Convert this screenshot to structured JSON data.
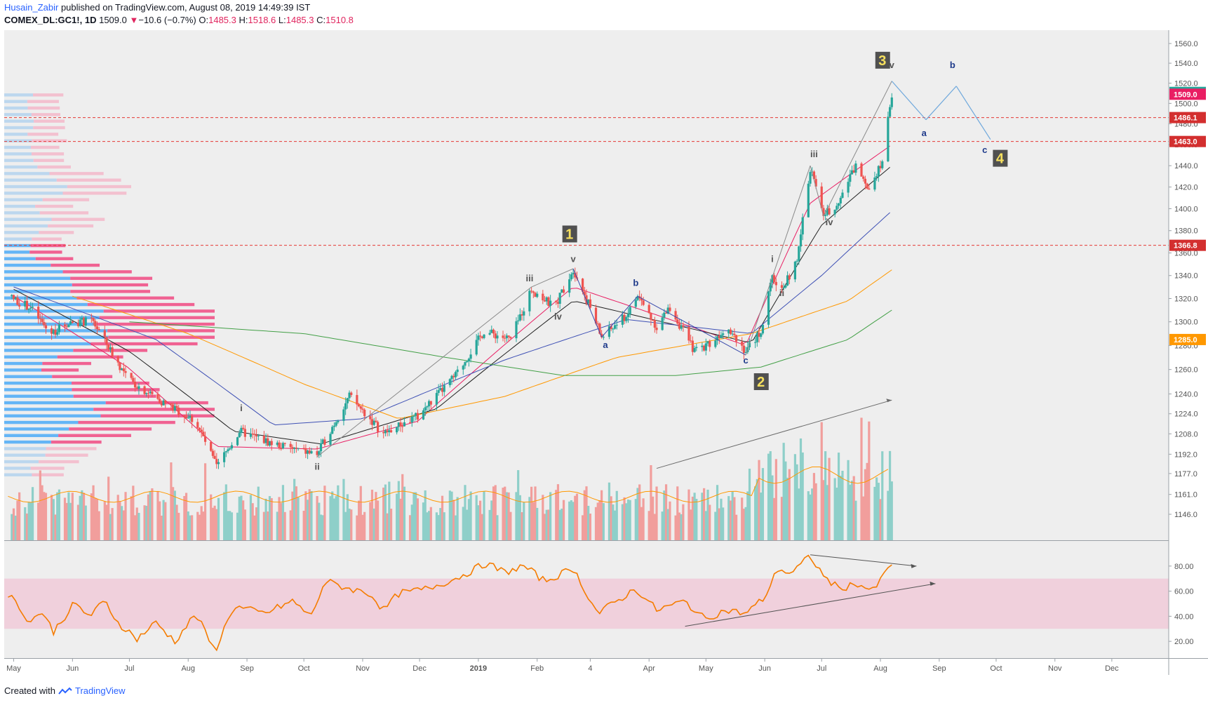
{
  "header": {
    "author": "Husain_Zabir",
    "published": "published on TradingView.com, August 08, 2019 14:49:39 IST",
    "symbol": "COMEX_DL:GC1!, 1D",
    "last": "1509.0",
    "arrow": "▼",
    "change": "−10.6 (−0.7%)",
    "o_label": "O:",
    "o_value": "1485.3",
    "h_label": "H:",
    "h_value": "1518.6",
    "l_label": "L:",
    "l_value": "1485.3",
    "c_label": "C:",
    "c_value": "1510.8"
  },
  "footer": {
    "created_with": "Created with",
    "brand": "TradingView"
  },
  "colors": {
    "up": "#26a69a",
    "down": "#ef5350",
    "background": "#eeeeee",
    "ema_red": "#e91e63",
    "ema_black": "#212121",
    "ema_blue": "#3f51b5",
    "ema_orange": "#ff9800",
    "ema_green": "#43a047",
    "rsi": "#f57c00",
    "rsi_band": "#f0d0dc",
    "wave_label": "#f6e05e",
    "wave_box": "#505050",
    "abc": "#1e3a8a",
    "projection": "#6fa8dc"
  },
  "chart_data": [
    {
      "type": "candlestick",
      "y_axis": {
        "ticks": [
          1146.0,
          1161.0,
          1177.0,
          1192.0,
          1208.0,
          1224.0,
          1240.0,
          1260.0,
          1280.0,
          1300.0,
          1320.0,
          1340.0,
          1360.0,
          1380.0,
          1400.0,
          1420.0,
          1440.0,
          1460.0,
          1480.0,
          1500.0,
          1520.0,
          1540.0,
          1560.0
        ],
        "scale": "log"
      },
      "x_axis": {
        "ticks": [
          "May",
          "Jun",
          "Jul",
          "Aug",
          "Sep",
          "Oct",
          "Nov",
          "Dec",
          "2019",
          "Feb",
          "4",
          "Apr",
          "May",
          "Jun",
          "Jul",
          "Aug",
          "Sep",
          "Oct",
          "Nov",
          "Dec"
        ]
      },
      "price_labels": [
        {
          "value": "1510.8",
          "color": "#26a69a"
        },
        {
          "value": "1509.0",
          "color": "#e91e63"
        },
        {
          "value": "1486.1",
          "color": "#d32f2f"
        },
        {
          "value": "1463.0",
          "color": "#d32f2f"
        },
        {
          "value": "1366.8",
          "color": "#d32f2f"
        },
        {
          "value": "1285.0",
          "color": "#ff9800"
        }
      ],
      "horizontal_levels": [
        1486.1,
        1463.0,
        1366.8
      ],
      "price_path": [
        [
          "2018-04-28",
          1322
        ],
        [
          "2018-05-10",
          1312
        ],
        [
          "2018-05-20",
          1290
        ],
        [
          "2018-05-31",
          1300
        ],
        [
          "2018-06-12",
          1300
        ],
        [
          "2018-06-30",
          1252
        ],
        [
          "2018-07-20",
          1232
        ],
        [
          "2018-08-05",
          1218
        ],
        [
          "2018-08-16",
          1182
        ],
        [
          "2018-08-28",
          1210
        ],
        [
          "2018-09-15",
          1200
        ],
        [
          "2018-09-28",
          1195
        ],
        [
          "2018-10-08",
          1192
        ],
        [
          "2018-10-25",
          1238
        ],
        [
          "2018-11-12",
          1208
        ],
        [
          "2018-11-30",
          1222
        ],
        [
          "2018-12-20",
          1255
        ],
        [
          "2019-01-04",
          1292
        ],
        [
          "2019-01-18",
          1285
        ],
        [
          "2019-01-29",
          1328
        ],
        [
          "2019-02-10",
          1312
        ],
        [
          "2019-02-20",
          1346
        ],
        [
          "2019-03-01",
          1312
        ],
        [
          "2019-03-07",
          1287
        ],
        [
          "2019-03-20",
          1305
        ],
        [
          "2019-03-26",
          1322
        ],
        [
          "2019-04-05",
          1296
        ],
        [
          "2019-04-12",
          1312
        ],
        [
          "2019-04-25",
          1275
        ],
        [
          "2019-05-06",
          1285
        ],
        [
          "2019-05-12",
          1298
        ],
        [
          "2019-05-22",
          1275
        ],
        [
          "2019-05-30",
          1292
        ],
        [
          "2019-06-05",
          1338
        ],
        [
          "2019-06-10",
          1328
        ],
        [
          "2019-06-18",
          1352
        ],
        [
          "2019-06-25",
          1438
        ],
        [
          "2019-07-02",
          1395
        ],
        [
          "2019-07-08",
          1402
        ],
        [
          "2019-07-12",
          1415
        ],
        [
          "2019-07-19",
          1440
        ],
        [
          "2019-07-26",
          1420
        ],
        [
          "2019-08-02",
          1445
        ],
        [
          "2019-08-07",
          1508
        ]
      ],
      "emas": [
        {
          "name": "",
          "color": "#e91e63",
          "points": [
            [
              "2018-05-01",
              1322
            ],
            [
              "2018-06-30",
              1262
            ],
            [
              "2018-08-16",
              1198
            ],
            [
              "2018-10-08",
              1196
            ],
            [
              "2018-11-30",
              1218
            ],
            [
              "2019-02-20",
              1330
            ],
            [
              "2019-05-22",
              1280
            ],
            [
              "2019-06-25",
              1405
            ],
            [
              "2019-08-07",
              1460
            ]
          ]
        },
        {
          "name": "",
          "color": "#212121",
          "points": [
            [
              "2018-05-01",
              1328
            ],
            [
              "2018-07-01",
              1275
            ],
            [
              "2018-08-25",
              1210
            ],
            [
              "2018-10-10",
              1200
            ],
            [
              "2018-12-10",
              1228
            ],
            [
              "2019-02-20",
              1318
            ],
            [
              "2019-05-25",
              1282
            ],
            [
              "2019-07-01",
              1385
            ],
            [
              "2019-08-07",
              1440
            ]
          ]
        },
        {
          "name": "",
          "color": "#3f51b5",
          "points": [
            [
              "2018-05-01",
              1330
            ],
            [
              "2018-07-15",
              1285
            ],
            [
              "2018-09-15",
              1215
            ],
            [
              "2018-11-01",
              1220
            ],
            [
              "2019-01-15",
              1268
            ],
            [
              "2019-03-20",
              1302
            ],
            [
              "2019-05-25",
              1290
            ],
            [
              "2019-07-01",
              1340
            ],
            [
              "2019-08-07",
              1398
            ]
          ]
        },
        {
          "name": "",
          "color": "#ff9800",
          "points": [
            [
              "2018-06-01",
              1322
            ],
            [
              "2018-08-01",
              1290
            ],
            [
              "2018-10-01",
              1248
            ],
            [
              "2018-11-20",
              1220
            ],
            [
              "2019-01-15",
              1238
            ],
            [
              "2019-03-15",
              1270
            ],
            [
              "2019-05-25",
              1290
            ],
            [
              "2019-07-15",
              1318
            ],
            [
              "2019-08-07",
              1345
            ]
          ]
        },
        {
          "name": "",
          "color": "#43a047",
          "points": [
            [
              "2018-07-01",
              1300
            ],
            [
              "2018-10-01",
              1290
            ],
            [
              "2018-12-15",
              1270
            ],
            [
              "2019-02-15",
              1255
            ],
            [
              "2019-04-15",
              1255
            ],
            [
              "2019-05-30",
              1262
            ],
            [
              "2019-07-15",
              1285
            ],
            [
              "2019-08-07",
              1310
            ]
          ]
        }
      ],
      "elliott_labels": [
        {
          "text": "1",
          "boxed": true
        },
        {
          "text": "2",
          "boxed": true
        },
        {
          "text": "3",
          "boxed": true
        },
        {
          "text": "4",
          "boxed": true
        },
        {
          "text": "i"
        },
        {
          "text": "ii"
        },
        {
          "text": "iii"
        },
        {
          "text": "iv"
        },
        {
          "text": "v"
        },
        {
          "text": "a"
        },
        {
          "text": "b"
        },
        {
          "text": "c"
        }
      ],
      "projection": [
        [
          "2019-08-07",
          1522
        ],
        [
          "2019-08-25",
          1484
        ],
        [
          "2019-09-10",
          1517
        ],
        [
          "2019-09-28",
          1465
        ]
      ],
      "volume_trendline": [
        [
          "2019-04-05",
          1181
        ],
        [
          "2019-08-07",
          1235
        ]
      ]
    },
    {
      "type": "line",
      "title": "",
      "y_axis": {
        "ticks": [
          20.0,
          40.0,
          60.0,
          80.0
        ],
        "range": [
          10,
          95
        ]
      },
      "band": [
        30,
        70
      ],
      "series": [
        {
          "name": "",
          "values": [
            [
              "2018-04-28",
              58
            ],
            [
              "2018-05-05",
              45
            ],
            [
              "2018-05-10",
              35
            ],
            [
              "2018-05-15",
              45
            ],
            [
              "2018-05-22",
              28
            ],
            [
              "2018-06-02",
              50
            ],
            [
              "2018-06-10",
              40
            ],
            [
              "2018-06-18",
              52
            ],
            [
              "2018-06-25",
              35
            ],
            [
              "2018-07-05",
              22
            ],
            [
              "2018-07-15",
              35
            ],
            [
              "2018-07-25",
              20
            ],
            [
              "2018-08-05",
              42
            ],
            [
              "2018-08-15",
              12
            ],
            [
              "2018-08-25",
              48
            ],
            [
              "2018-09-10",
              42
            ],
            [
              "2018-09-25",
              52
            ],
            [
              "2018-10-05",
              40
            ],
            [
              "2018-10-12",
              68
            ],
            [
              "2018-10-25",
              62
            ],
            [
              "2018-11-05",
              58
            ],
            [
              "2018-11-12",
              45
            ],
            [
              "2018-11-20",
              58
            ],
            [
              "2018-12-05",
              62
            ],
            [
              "2018-12-20",
              70
            ],
            [
              "2019-01-05",
              82
            ],
            [
              "2019-01-15",
              75
            ],
            [
              "2019-01-25",
              80
            ],
            [
              "2019-02-05",
              68
            ],
            [
              "2019-02-20",
              78
            ],
            [
              "2019-03-05",
              42
            ],
            [
              "2019-03-15",
              52
            ],
            [
              "2019-03-25",
              62
            ],
            [
              "2019-04-05",
              45
            ],
            [
              "2019-04-20",
              52
            ],
            [
              "2019-04-30",
              38
            ],
            [
              "2019-05-12",
              45
            ],
            [
              "2019-05-22",
              42
            ],
            [
              "2019-06-01",
              55
            ],
            [
              "2019-06-08",
              78
            ],
            [
              "2019-06-15",
              74
            ],
            [
              "2019-06-25",
              88
            ],
            [
              "2019-07-02",
              72
            ],
            [
              "2019-07-10",
              62
            ],
            [
              "2019-07-20",
              66
            ],
            [
              "2019-07-28",
              60
            ],
            [
              "2019-08-07",
              82
            ]
          ]
        }
      ],
      "trendlines": [
        [
          [
            "2019-06-25",
            89
          ],
          [
            "2019-08-20",
            80
          ]
        ],
        [
          [
            "2019-04-20",
            32
          ],
          [
            "2019-08-30",
            66
          ]
        ]
      ]
    }
  ]
}
